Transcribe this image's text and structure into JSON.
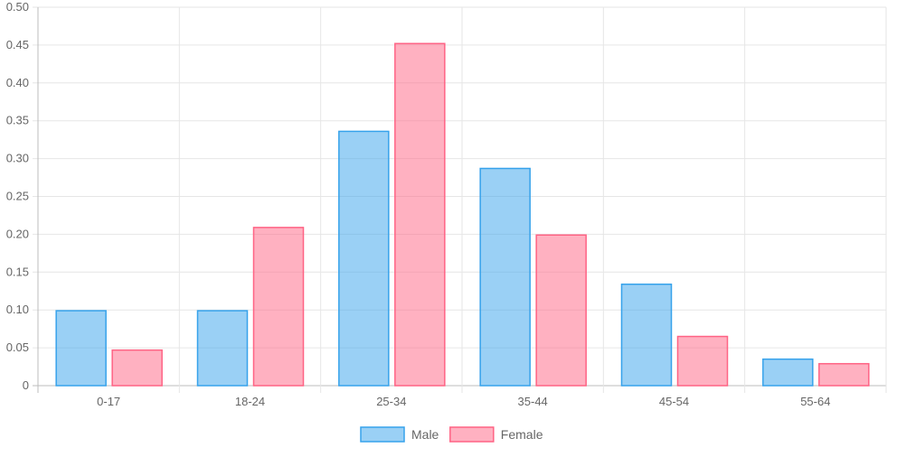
{
  "chart_data": {
    "type": "bar",
    "categories": [
      "0-17",
      "18-24",
      "25-34",
      "35-44",
      "45-54",
      "55-64"
    ],
    "series": [
      {
        "name": "Male",
        "values": [
          0.099,
          0.099,
          0.336,
          0.287,
          0.134,
          0.035
        ],
        "fill": "rgba(54,162,235,0.5)",
        "stroke": "#36a2eb"
      },
      {
        "name": "Female",
        "values": [
          0.047,
          0.209,
          0.452,
          0.199,
          0.065,
          0.029
        ],
        "fill": "rgba(255,99,132,0.5)",
        "stroke": "#ff6384"
      }
    ],
    "y_ticks": [
      "0",
      "0.05",
      "0.10",
      "0.15",
      "0.20",
      "0.25",
      "0.30",
      "0.35",
      "0.40",
      "0.45",
      "0.50"
    ],
    "ylim": [
      0,
      0.5
    ],
    "grid": true,
    "legend_position": "bottom-center",
    "title": "",
    "xlabel": "",
    "ylabel": ""
  }
}
